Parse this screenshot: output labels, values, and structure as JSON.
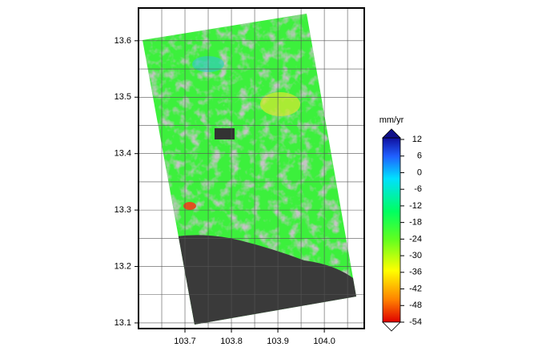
{
  "chart_data": {
    "type": "map",
    "xlim": [
      103.6,
      104.086
    ],
    "ylim": [
      13.09,
      13.658
    ],
    "xticks": [
      103.7,
      103.8,
      103.9,
      {
        "value": 104.0,
        "label": "104.0"
      }
    ],
    "yticks": [
      13.1,
      13.2,
      13.3,
      13.4,
      13.5,
      13.6
    ],
    "xgrid": [
      103.65,
      103.75,
      103.85,
      103.95,
      104.05
    ],
    "ygrid": [
      13.15,
      13.25,
      13.35,
      13.45,
      13.55
    ],
    "grid": true,
    "colorbar": {
      "label": "mm/yr",
      "clim": [
        -54,
        12
      ],
      "ticks": [
        12,
        6,
        0,
        -6,
        -12,
        -18,
        -24,
        -30,
        -36,
        -42,
        -48,
        -54
      ]
    }
  }
}
